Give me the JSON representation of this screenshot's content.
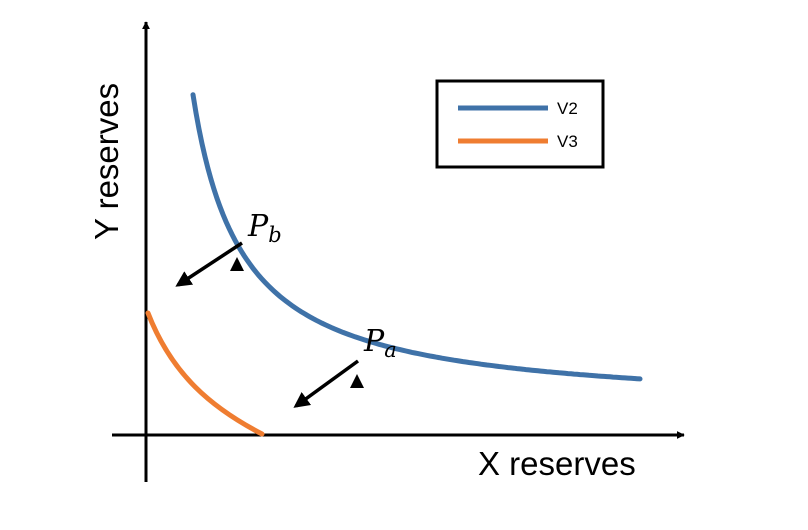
{
  "axes": {
    "x_label": "X reserves",
    "y_label": "Y reserves"
  },
  "legend": {
    "position": "top-right",
    "entries": [
      {
        "label": "V2",
        "color": "#3f72a8"
      },
      {
        "label": "V3",
        "color": "#ef7d31"
      }
    ]
  },
  "points": [
    {
      "base": "P",
      "sub": "b"
    },
    {
      "base": "P",
      "sub": "a"
    }
  ],
  "chart_data": {
    "type": "line",
    "xlabel": "X reserves",
    "ylabel": "Y reserves",
    "ticks": "none",
    "grid": false,
    "series": [
      {
        "name": "V2",
        "color": "#3f72a8",
        "shape": "hyperbola x*y = k"
      },
      {
        "name": "V3",
        "color": "#ef7d31",
        "shape": "shifted concave-up curve meeting both axes"
      }
    ],
    "annotations": [
      "P_b on V2 with arrow toward origin",
      "P_a on V2 with arrow toward origin"
    ]
  }
}
